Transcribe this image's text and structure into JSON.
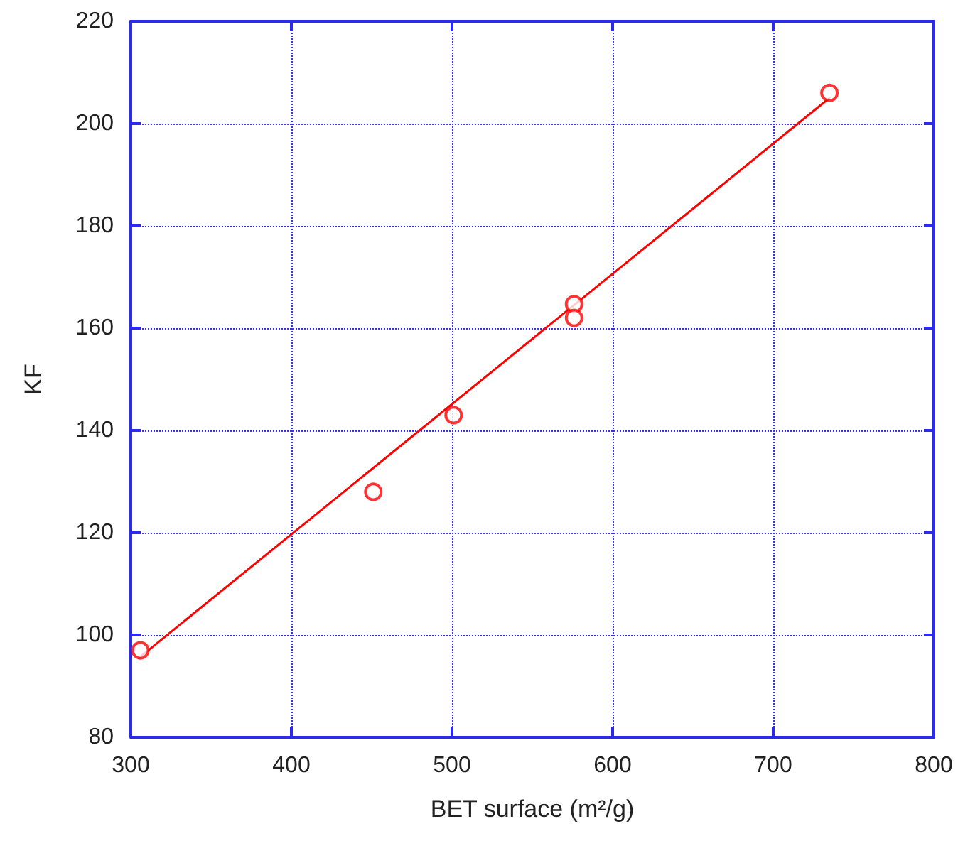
{
  "chart_data": {
    "type": "scatter",
    "xlabel": "BET surface (m²/g)",
    "ylabel": "KF",
    "xlim": [
      300,
      800
    ],
    "xticks": [
      300,
      400,
      500,
      600,
      700,
      800
    ],
    "ylim": [
      80,
      220
    ],
    "yticks": [
      80,
      100,
      120,
      140,
      160,
      180,
      200,
      220
    ],
    "grid": true,
    "marker": "circle",
    "series": [
      {
        "color": "#ff0000",
        "x": [
          306,
          451,
          501,
          576,
          576,
          735
        ],
        "values": [
          97,
          128,
          143,
          164.7,
          162,
          206
        ]
      },
      {
        "type": "line",
        "color": "#ff0000",
        "marker": "none",
        "line_style": "solid",
        "x": [
          305,
          735
        ],
        "values": [
          95.5,
          205
        ]
      }
    ]
  }
}
